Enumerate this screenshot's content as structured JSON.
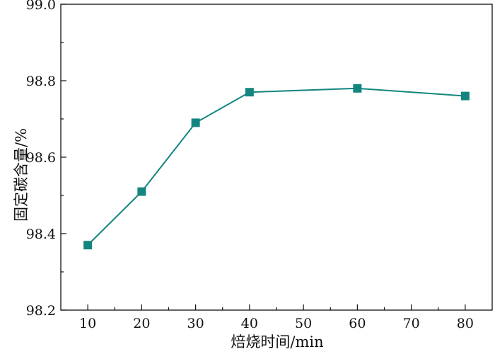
{
  "chart_data": {
    "type": "line",
    "title": "",
    "xlabel": "焙烧时间/min",
    "ylabel": "固定碳含量/%",
    "x": [
      10,
      20,
      30,
      40,
      60,
      80
    ],
    "series": [
      {
        "values": [
          98.37,
          98.51,
          98.69,
          98.77,
          98.78,
          98.76
        ]
      }
    ],
    "xlim": [
      5,
      85
    ],
    "ylim": [
      98.2,
      99.0
    ],
    "xticks": [
      "10",
      "20",
      "30",
      "40",
      "50",
      "60",
      "70",
      "80"
    ],
    "yticks": [
      "98.2",
      "98.4",
      "98.6",
      "98.8",
      "99.0"
    ],
    "series_color": "#13857f",
    "marker": "square",
    "grid": false,
    "legend": "none"
  }
}
